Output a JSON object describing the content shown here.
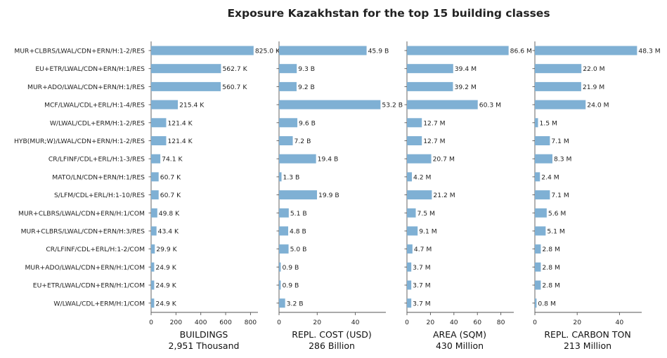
{
  "title": "Exposure Kazakhstan for the top 15 building classes",
  "colors": {
    "bar": "#7fb0d4",
    "axis": "#555555",
    "text": "#222222"
  },
  "chart_data": {
    "type": "bar",
    "orientation": "horizontal",
    "categories": [
      "MUR+CLBRS/LWAL/CDN+ERN/H:1-2/RES",
      "EU+ETR/LWAL/CDN+ERN/H:1/RES",
      "MUR+ADO/LWAL/CDN+ERN/H:1/RES",
      "MCF/LWAL/CDL+ERL/H:1-4/RES",
      "W/LWAL/CDL+ERM/H:1-2/RES",
      "HYB(MUR;W)/LWAL/CDN+ERN/H:1-2/RES",
      "CR/LFINF/CDL+ERL/H:1-3/RES",
      "MATO/LN/CDN+ERN/H:1/RES",
      "S/LFM/CDL+ERL/H:1-10/RES",
      "MUR+CLBRS/LWAL/CDN+ERN/H:1/COM",
      "MUR+CLBRS/LWAL/CDN+ERN/H:3/RES",
      "CR/LFINF/CDL+ERL/H:1-2/COM",
      "MUR+ADO/LWAL/CDN+ERN/H:1/COM",
      "EU+ETR/LWAL/CDN+ERN/H:1/COM",
      "W/LWAL/CDL+ERM/H:1/COM"
    ],
    "panels": [
      {
        "xlabel": "BUILDINGS",
        "total": "2,951 Thousand",
        "xlim": [
          0,
          860
        ],
        "ticks": [
          0,
          200,
          400,
          600,
          800
        ],
        "values": [
          825.0,
          562.7,
          560.7,
          215.4,
          121.4,
          121.4,
          74.1,
          60.7,
          60.7,
          49.8,
          43.4,
          29.9,
          24.9,
          24.9,
          24.9
        ],
        "labels": [
          "825.0 K",
          "562.7 K",
          "560.7 K",
          "215.4 K",
          "121.4 K",
          "121.4 K",
          "74.1 K",
          "60.7 K",
          "60.7 K",
          "49.8 K",
          "43.4 K",
          "29.9 K",
          "24.9 K",
          "24.9 K",
          "24.9 K"
        ]
      },
      {
        "xlabel": "REPL. COST (USD)",
        "total": "286 Billion",
        "xlim": [
          0,
          56
        ],
        "ticks": [
          0,
          20,
          40
        ],
        "values": [
          45.9,
          9.3,
          9.2,
          53.2,
          9.6,
          7.2,
          19.4,
          1.3,
          19.9,
          5.1,
          4.8,
          5.0,
          0.9,
          0.9,
          3.2
        ],
        "labels": [
          "45.9 B",
          "9.3 B",
          "9.2 B",
          "53.2 B",
          "9.6 B",
          "7.2 B",
          "19.4 B",
          "1.3 B",
          "19.9 B",
          "5.1 B",
          "4.8 B",
          "5.0 B",
          "0.9 B",
          "0.9 B",
          "3.2 B"
        ]
      },
      {
        "xlabel": "AREA (SQM)",
        "total": "430 Million",
        "xlim": [
          0,
          91
        ],
        "ticks": [
          0,
          20,
          40,
          60,
          80
        ],
        "values": [
          86.6,
          39.4,
          39.2,
          60.3,
          12.7,
          12.7,
          20.7,
          4.2,
          21.2,
          7.5,
          9.1,
          4.7,
          3.7,
          3.7,
          3.7
        ],
        "labels": [
          "86.6 M",
          "39.4 M",
          "39.2 M",
          "60.3 M",
          "12.7 M",
          "12.7 M",
          "20.7 M",
          "4.2 M",
          "21.2 M",
          "7.5 M",
          "9.1 M",
          "4.7 M",
          "3.7 M",
          "3.7 M",
          "3.7 M"
        ]
      },
      {
        "xlabel": "REPL. CARBON TON",
        "total": "213 Million",
        "xlim": [
          0,
          50.5
        ],
        "ticks": [
          0,
          20,
          40
        ],
        "values": [
          48.3,
          22.0,
          21.9,
          24.0,
          1.5,
          7.1,
          8.3,
          2.4,
          7.1,
          5.6,
          5.1,
          2.8,
          2.8,
          2.8,
          0.8
        ],
        "labels": [
          "48.3 M",
          "22.0 M",
          "21.9 M",
          "24.0 M",
          "1.5 M",
          "7.1 M",
          "8.3 M",
          "2.4 M",
          "7.1 M",
          "5.6 M",
          "5.1 M",
          "2.8 M",
          "2.8 M",
          "2.8 M",
          "0.8 M"
        ]
      }
    ]
  }
}
